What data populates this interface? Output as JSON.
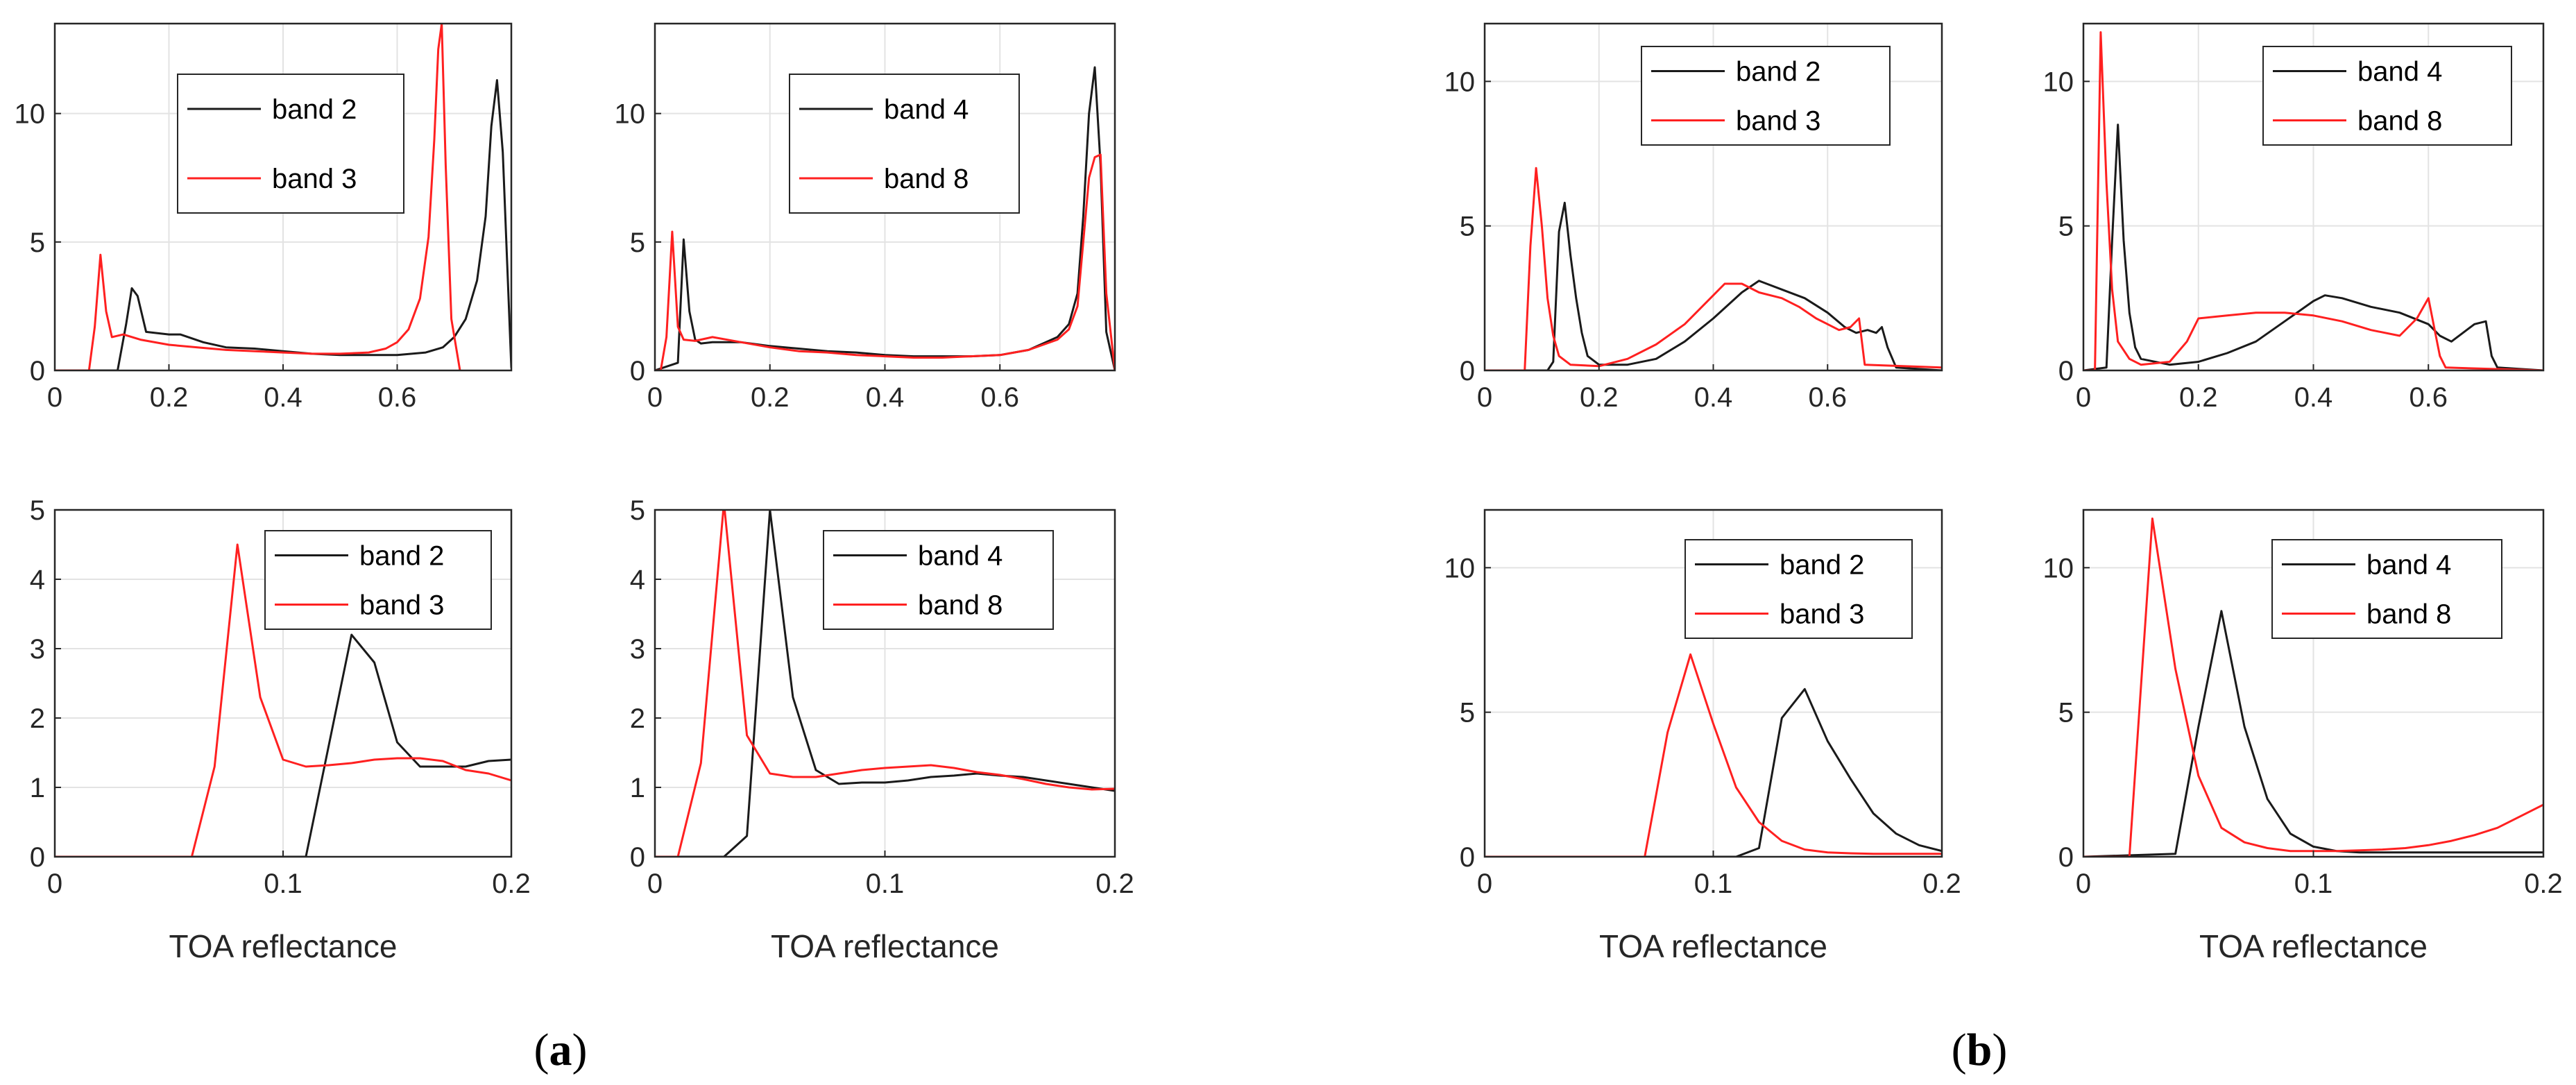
{
  "figure": {
    "panel_labels": [
      {
        "open": "(",
        "letter": "a",
        "close": ")"
      },
      {
        "open": "(",
        "letter": "b",
        "close": ")"
      }
    ]
  },
  "chart_data": [
    {
      "id": "a-top-left",
      "type": "line",
      "xlim": [
        0,
        0.8
      ],
      "ylim": [
        0,
        13.5
      ],
      "xticks": [
        0,
        0.2,
        0.4,
        0.6
      ],
      "yticks": [
        0,
        5,
        10
      ],
      "xtick_labels": [
        "0",
        "0.2",
        "0.4",
        "0.6"
      ],
      "ytick_labels": [
        "0",
        "5",
        "10"
      ],
      "xlabel": "",
      "grid": true,
      "legend_position": "top-center",
      "series": [
        {
          "name": "band 2",
          "color": "#1a1a1a",
          "x": [
            0,
            0.11,
            0.125,
            0.135,
            0.145,
            0.16,
            0.2,
            0.22,
            0.26,
            0.3,
            0.35,
            0.4,
            0.45,
            0.5,
            0.55,
            0.6,
            0.65,
            0.68,
            0.7,
            0.72,
            0.74,
            0.755,
            0.765,
            0.775,
            0.785,
            0.8
          ],
          "y": [
            0,
            0,
            1.8,
            3.2,
            2.9,
            1.5,
            1.4,
            1.4,
            1.1,
            0.9,
            0.85,
            0.75,
            0.65,
            0.6,
            0.6,
            0.6,
            0.7,
            0.9,
            1.3,
            2.0,
            3.5,
            6.0,
            9.5,
            11.3,
            8.5,
            0.1
          ]
        },
        {
          "name": "band 3",
          "color": "#ff2020",
          "x": [
            0,
            0.06,
            0.07,
            0.08,
            0.09,
            0.1,
            0.12,
            0.15,
            0.2,
            0.25,
            0.3,
            0.35,
            0.4,
            0.45,
            0.5,
            0.55,
            0.58,
            0.6,
            0.62,
            0.64,
            0.655,
            0.665,
            0.672,
            0.678,
            0.685,
            0.695,
            0.71
          ],
          "y": [
            0,
            0,
            1.7,
            4.5,
            2.3,
            1.3,
            1.4,
            1.2,
            1.0,
            0.9,
            0.8,
            0.75,
            0.7,
            0.65,
            0.65,
            0.7,
            0.85,
            1.1,
            1.6,
            2.8,
            5.2,
            9.0,
            12.5,
            13.5,
            8.0,
            2.0,
            0
          ]
        }
      ]
    },
    {
      "id": "a-top-right",
      "type": "line",
      "xlim": [
        0,
        0.8
      ],
      "ylim": [
        0,
        13.5
      ],
      "xticks": [
        0,
        0.2,
        0.4,
        0.6
      ],
      "yticks": [
        0,
        5,
        10
      ],
      "xtick_labels": [
        "0",
        "0.2",
        "0.4",
        "0.6"
      ],
      "ytick_labels": [
        "0",
        "5",
        "10"
      ],
      "xlabel": "",
      "grid": true,
      "legend_position": "top-center",
      "series": [
        {
          "name": "band 4",
          "color": "#1a1a1a",
          "x": [
            0,
            0.04,
            0.05,
            0.06,
            0.07,
            0.08,
            0.1,
            0.15,
            0.2,
            0.25,
            0.3,
            0.35,
            0.4,
            0.45,
            0.5,
            0.55,
            0.6,
            0.65,
            0.7,
            0.72,
            0.735,
            0.745,
            0.755,
            0.765,
            0.775,
            0.785,
            0.8
          ],
          "y": [
            0,
            0.3,
            5.1,
            2.3,
            1.2,
            1.05,
            1.1,
            1.1,
            0.95,
            0.85,
            0.75,
            0.7,
            0.6,
            0.55,
            0.55,
            0.55,
            0.6,
            0.8,
            1.3,
            1.8,
            3.0,
            6.0,
            10.0,
            11.8,
            8.0,
            1.5,
            0
          ]
        },
        {
          "name": "band 8",
          "color": "#ff2020",
          "x": [
            0,
            0.01,
            0.02,
            0.03,
            0.04,
            0.05,
            0.07,
            0.1,
            0.15,
            0.2,
            0.25,
            0.3,
            0.35,
            0.4,
            0.45,
            0.5,
            0.55,
            0.6,
            0.65,
            0.7,
            0.72,
            0.735,
            0.745,
            0.755,
            0.765,
            0.775,
            0.785,
            0.8
          ],
          "y": [
            0,
            0,
            1.3,
            5.4,
            1.7,
            1.2,
            1.15,
            1.3,
            1.1,
            0.9,
            0.75,
            0.7,
            0.6,
            0.55,
            0.5,
            0.5,
            0.55,
            0.6,
            0.8,
            1.2,
            1.6,
            2.5,
            5.0,
            7.5,
            8.3,
            8.4,
            3.0,
            0
          ]
        }
      ]
    },
    {
      "id": "a-bottom-left",
      "type": "line",
      "xlim": [
        0,
        0.2
      ],
      "ylim": [
        0,
        5
      ],
      "xticks": [
        0,
        0.1,
        0.2
      ],
      "yticks": [
        0,
        1,
        2,
        3,
        4,
        5
      ],
      "xtick_labels": [
        "0",
        "0.1",
        "0.2"
      ],
      "ytick_labels": [
        "0",
        "1",
        "2",
        "3",
        "4",
        "5"
      ],
      "xlabel": "TOA reflectance",
      "grid": true,
      "legend_position": "top-right",
      "series": [
        {
          "name": "band 2",
          "color": "#1a1a1a",
          "x": [
            0,
            0.1,
            0.11,
            0.12,
            0.13,
            0.14,
            0.15,
            0.16,
            0.17,
            0.18,
            0.19,
            0.2
          ],
          "y": [
            0,
            0,
            0,
            1.6,
            3.2,
            2.8,
            1.65,
            1.3,
            1.3,
            1.3,
            1.38,
            1.4
          ]
        },
        {
          "name": "band 3",
          "color": "#ff2020",
          "x": [
            0,
            0.06,
            0.07,
            0.08,
            0.09,
            0.1,
            0.11,
            0.12,
            0.13,
            0.14,
            0.15,
            0.16,
            0.17,
            0.18,
            0.19,
            0.2
          ],
          "y": [
            0,
            0,
            1.3,
            4.5,
            2.3,
            1.4,
            1.3,
            1.32,
            1.35,
            1.4,
            1.42,
            1.42,
            1.38,
            1.25,
            1.2,
            1.1
          ]
        }
      ]
    },
    {
      "id": "a-bottom-right",
      "type": "line",
      "xlim": [
        0,
        0.2
      ],
      "ylim": [
        0,
        5
      ],
      "xticks": [
        0,
        0.1,
        0.2
      ],
      "yticks": [
        0,
        1,
        2,
        3,
        4,
        5
      ],
      "xtick_labels": [
        "0",
        "0.1",
        "0.2"
      ],
      "ytick_labels": [
        "0",
        "1",
        "2",
        "3",
        "4",
        "5"
      ],
      "xlabel": "TOA reflectance",
      "grid": true,
      "legend_position": "top-right",
      "series": [
        {
          "name": "band 4",
          "color": "#1a1a1a",
          "x": [
            0,
            0.03,
            0.04,
            0.05,
            0.06,
            0.07,
            0.08,
            0.09,
            0.1,
            0.11,
            0.12,
            0.13,
            0.14,
            0.15,
            0.16,
            0.17,
            0.18,
            0.19,
            0.2
          ],
          "y": [
            0,
            0,
            0.3,
            5.0,
            2.3,
            1.25,
            1.05,
            1.07,
            1.07,
            1.1,
            1.15,
            1.17,
            1.2,
            1.17,
            1.15,
            1.1,
            1.05,
            1.0,
            0.95
          ]
        },
        {
          "name": "band 8",
          "color": "#ff2020",
          "x": [
            0,
            0.01,
            0.02,
            0.03,
            0.04,
            0.05,
            0.06,
            0.07,
            0.08,
            0.09,
            0.1,
            0.11,
            0.12,
            0.13,
            0.14,
            0.15,
            0.16,
            0.17,
            0.18,
            0.19,
            0.2
          ],
          "y": [
            0,
            0,
            1.35,
            5.1,
            1.75,
            1.2,
            1.15,
            1.15,
            1.2,
            1.25,
            1.28,
            1.3,
            1.32,
            1.28,
            1.22,
            1.18,
            1.12,
            1.05,
            1.0,
            0.97,
            0.98
          ]
        }
      ]
    },
    {
      "id": "b-top-left",
      "type": "line",
      "xlim": [
        0,
        0.8
      ],
      "ylim": [
        0,
        12
      ],
      "xticks": [
        0,
        0.2,
        0.4,
        0.6
      ],
      "yticks": [
        0,
        5,
        10
      ],
      "xtick_labels": [
        "0",
        "0.2",
        "0.4",
        "0.6"
      ],
      "ytick_labels": [
        "0",
        "5",
        "10"
      ],
      "xlabel": "",
      "grid": true,
      "legend_position": "top-right",
      "series": [
        {
          "name": "band 2",
          "color": "#1a1a1a",
          "x": [
            0,
            0.11,
            0.12,
            0.13,
            0.14,
            0.15,
            0.16,
            0.17,
            0.18,
            0.2,
            0.25,
            0.3,
            0.35,
            0.4,
            0.45,
            0.48,
            0.52,
            0.56,
            0.6,
            0.63,
            0.65,
            0.67,
            0.685,
            0.695,
            0.705,
            0.72,
            0.8
          ],
          "y": [
            0,
            0,
            0.3,
            4.8,
            5.8,
            4.0,
            2.5,
            1.3,
            0.5,
            0.2,
            0.2,
            0.4,
            1.0,
            1.8,
            2.7,
            3.1,
            2.8,
            2.5,
            2.0,
            1.5,
            1.3,
            1.4,
            1.3,
            1.5,
            0.8,
            0.1,
            0
          ]
        },
        {
          "name": "band 3",
          "color": "#ff2020",
          "x": [
            0,
            0.07,
            0.08,
            0.09,
            0.1,
            0.11,
            0.12,
            0.13,
            0.15,
            0.2,
            0.25,
            0.3,
            0.35,
            0.4,
            0.42,
            0.45,
            0.48,
            0.52,
            0.55,
            0.58,
            0.6,
            0.62,
            0.64,
            0.655,
            0.665,
            0.8
          ],
          "y": [
            0,
            0,
            4.3,
            7.0,
            5.0,
            2.5,
            1.2,
            0.5,
            0.2,
            0.15,
            0.4,
            0.9,
            1.6,
            2.6,
            3.0,
            3.0,
            2.7,
            2.5,
            2.2,
            1.8,
            1.6,
            1.4,
            1.5,
            1.8,
            0.2,
            0.1
          ]
        }
      ]
    },
    {
      "id": "b-top-right",
      "type": "line",
      "xlim": [
        0,
        0.8
      ],
      "ylim": [
        0,
        12
      ],
      "xticks": [
        0,
        0.2,
        0.4,
        0.6
      ],
      "yticks": [
        0,
        5,
        10
      ],
      "xtick_labels": [
        "0",
        "0.2",
        "0.4",
        "0.6"
      ],
      "ytick_labels": [
        "0",
        "5",
        "10"
      ],
      "xlabel": "",
      "grid": true,
      "legend_position": "top-right",
      "series": [
        {
          "name": "band 4",
          "color": "#1a1a1a",
          "x": [
            0,
            0.04,
            0.05,
            0.06,
            0.07,
            0.08,
            0.09,
            0.1,
            0.15,
            0.2,
            0.25,
            0.3,
            0.35,
            0.4,
            0.42,
            0.45,
            0.5,
            0.55,
            0.6,
            0.62,
            0.64,
            0.66,
            0.68,
            0.7,
            0.71,
            0.72,
            0.8
          ],
          "y": [
            0,
            0.1,
            4.5,
            8.5,
            4.5,
            2.0,
            0.8,
            0.4,
            0.2,
            0.3,
            0.6,
            1.0,
            1.7,
            2.4,
            2.6,
            2.5,
            2.2,
            2.0,
            1.6,
            1.2,
            1.0,
            1.3,
            1.6,
            1.7,
            0.5,
            0.1,
            0
          ]
        },
        {
          "name": "band 8",
          "color": "#ff2020",
          "x": [
            0,
            0.02,
            0.03,
            0.04,
            0.05,
            0.06,
            0.08,
            0.1,
            0.15,
            0.18,
            0.2,
            0.25,
            0.3,
            0.35,
            0.4,
            0.45,
            0.5,
            0.55,
            0.58,
            0.6,
            0.61,
            0.62,
            0.63,
            0.8
          ],
          "y": [
            0,
            0,
            11.7,
            6.5,
            2.8,
            1.0,
            0.4,
            0.2,
            0.3,
            1.0,
            1.8,
            1.9,
            2.0,
            2.0,
            1.9,
            1.7,
            1.4,
            1.2,
            1.8,
            2.5,
            1.5,
            0.5,
            0.1,
            0
          ]
        }
      ]
    },
    {
      "id": "b-bottom-left",
      "type": "line",
      "xlim": [
        0,
        0.2
      ],
      "ylim": [
        0,
        12
      ],
      "xticks": [
        0,
        0.1,
        0.2
      ],
      "yticks": [
        0,
        5,
        10
      ],
      "xtick_labels": [
        "0",
        "0.1",
        "0.2"
      ],
      "ytick_labels": [
        "0",
        "5",
        "10"
      ],
      "xlabel": "TOA reflectance",
      "grid": true,
      "legend_position": "top-right",
      "series": [
        {
          "name": "band 2",
          "color": "#1a1a1a",
          "x": [
            0,
            0.11,
            0.12,
            0.13,
            0.14,
            0.15,
            0.16,
            0.17,
            0.18,
            0.19,
            0.2
          ],
          "y": [
            0,
            0,
            0.3,
            4.8,
            5.8,
            4.0,
            2.7,
            1.5,
            0.8,
            0.4,
            0.2
          ]
        },
        {
          "name": "band 3",
          "color": "#ff2020",
          "x": [
            0,
            0.07,
            0.08,
            0.09,
            0.1,
            0.11,
            0.12,
            0.13,
            0.14,
            0.15,
            0.16,
            0.17,
            0.18,
            0.19,
            0.2
          ],
          "y": [
            0,
            0,
            4.3,
            7.0,
            4.6,
            2.4,
            1.2,
            0.55,
            0.25,
            0.15,
            0.12,
            0.1,
            0.1,
            0.1,
            0.1
          ]
        }
      ]
    },
    {
      "id": "b-bottom-right",
      "type": "line",
      "xlim": [
        0,
        0.2
      ],
      "ylim": [
        0,
        12
      ],
      "xticks": [
        0,
        0.1,
        0.2
      ],
      "yticks": [
        0,
        5,
        10
      ],
      "xtick_labels": [
        "0",
        "0.1",
        "0.2"
      ],
      "ytick_labels": [
        "0",
        "5",
        "10"
      ],
      "xlabel": "TOA reflectance",
      "grid": true,
      "legend_position": "top-right",
      "series": [
        {
          "name": "band 4",
          "color": "#1a1a1a",
          "x": [
            0,
            0.04,
            0.05,
            0.06,
            0.07,
            0.08,
            0.09,
            0.1,
            0.11,
            0.12,
            0.13,
            0.14,
            0.15,
            0.16,
            0.17,
            0.18,
            0.19,
            0.2
          ],
          "y": [
            0,
            0.1,
            4.5,
            8.5,
            4.5,
            2.0,
            0.8,
            0.35,
            0.2,
            0.15,
            0.15,
            0.15,
            0.15,
            0.15,
            0.15,
            0.15,
            0.15,
            0.15
          ]
        },
        {
          "name": "band 8",
          "color": "#ff2020",
          "x": [
            0,
            0.02,
            0.03,
            0.04,
            0.05,
            0.06,
            0.07,
            0.08,
            0.09,
            0.1,
            0.11,
            0.12,
            0.13,
            0.14,
            0.15,
            0.16,
            0.17,
            0.18,
            0.19,
            0.2
          ],
          "y": [
            0,
            0,
            11.7,
            6.5,
            2.8,
            1.0,
            0.5,
            0.3,
            0.2,
            0.2,
            0.2,
            0.22,
            0.25,
            0.3,
            0.4,
            0.55,
            0.75,
            1.0,
            1.4,
            1.8
          ]
        }
      ]
    }
  ]
}
